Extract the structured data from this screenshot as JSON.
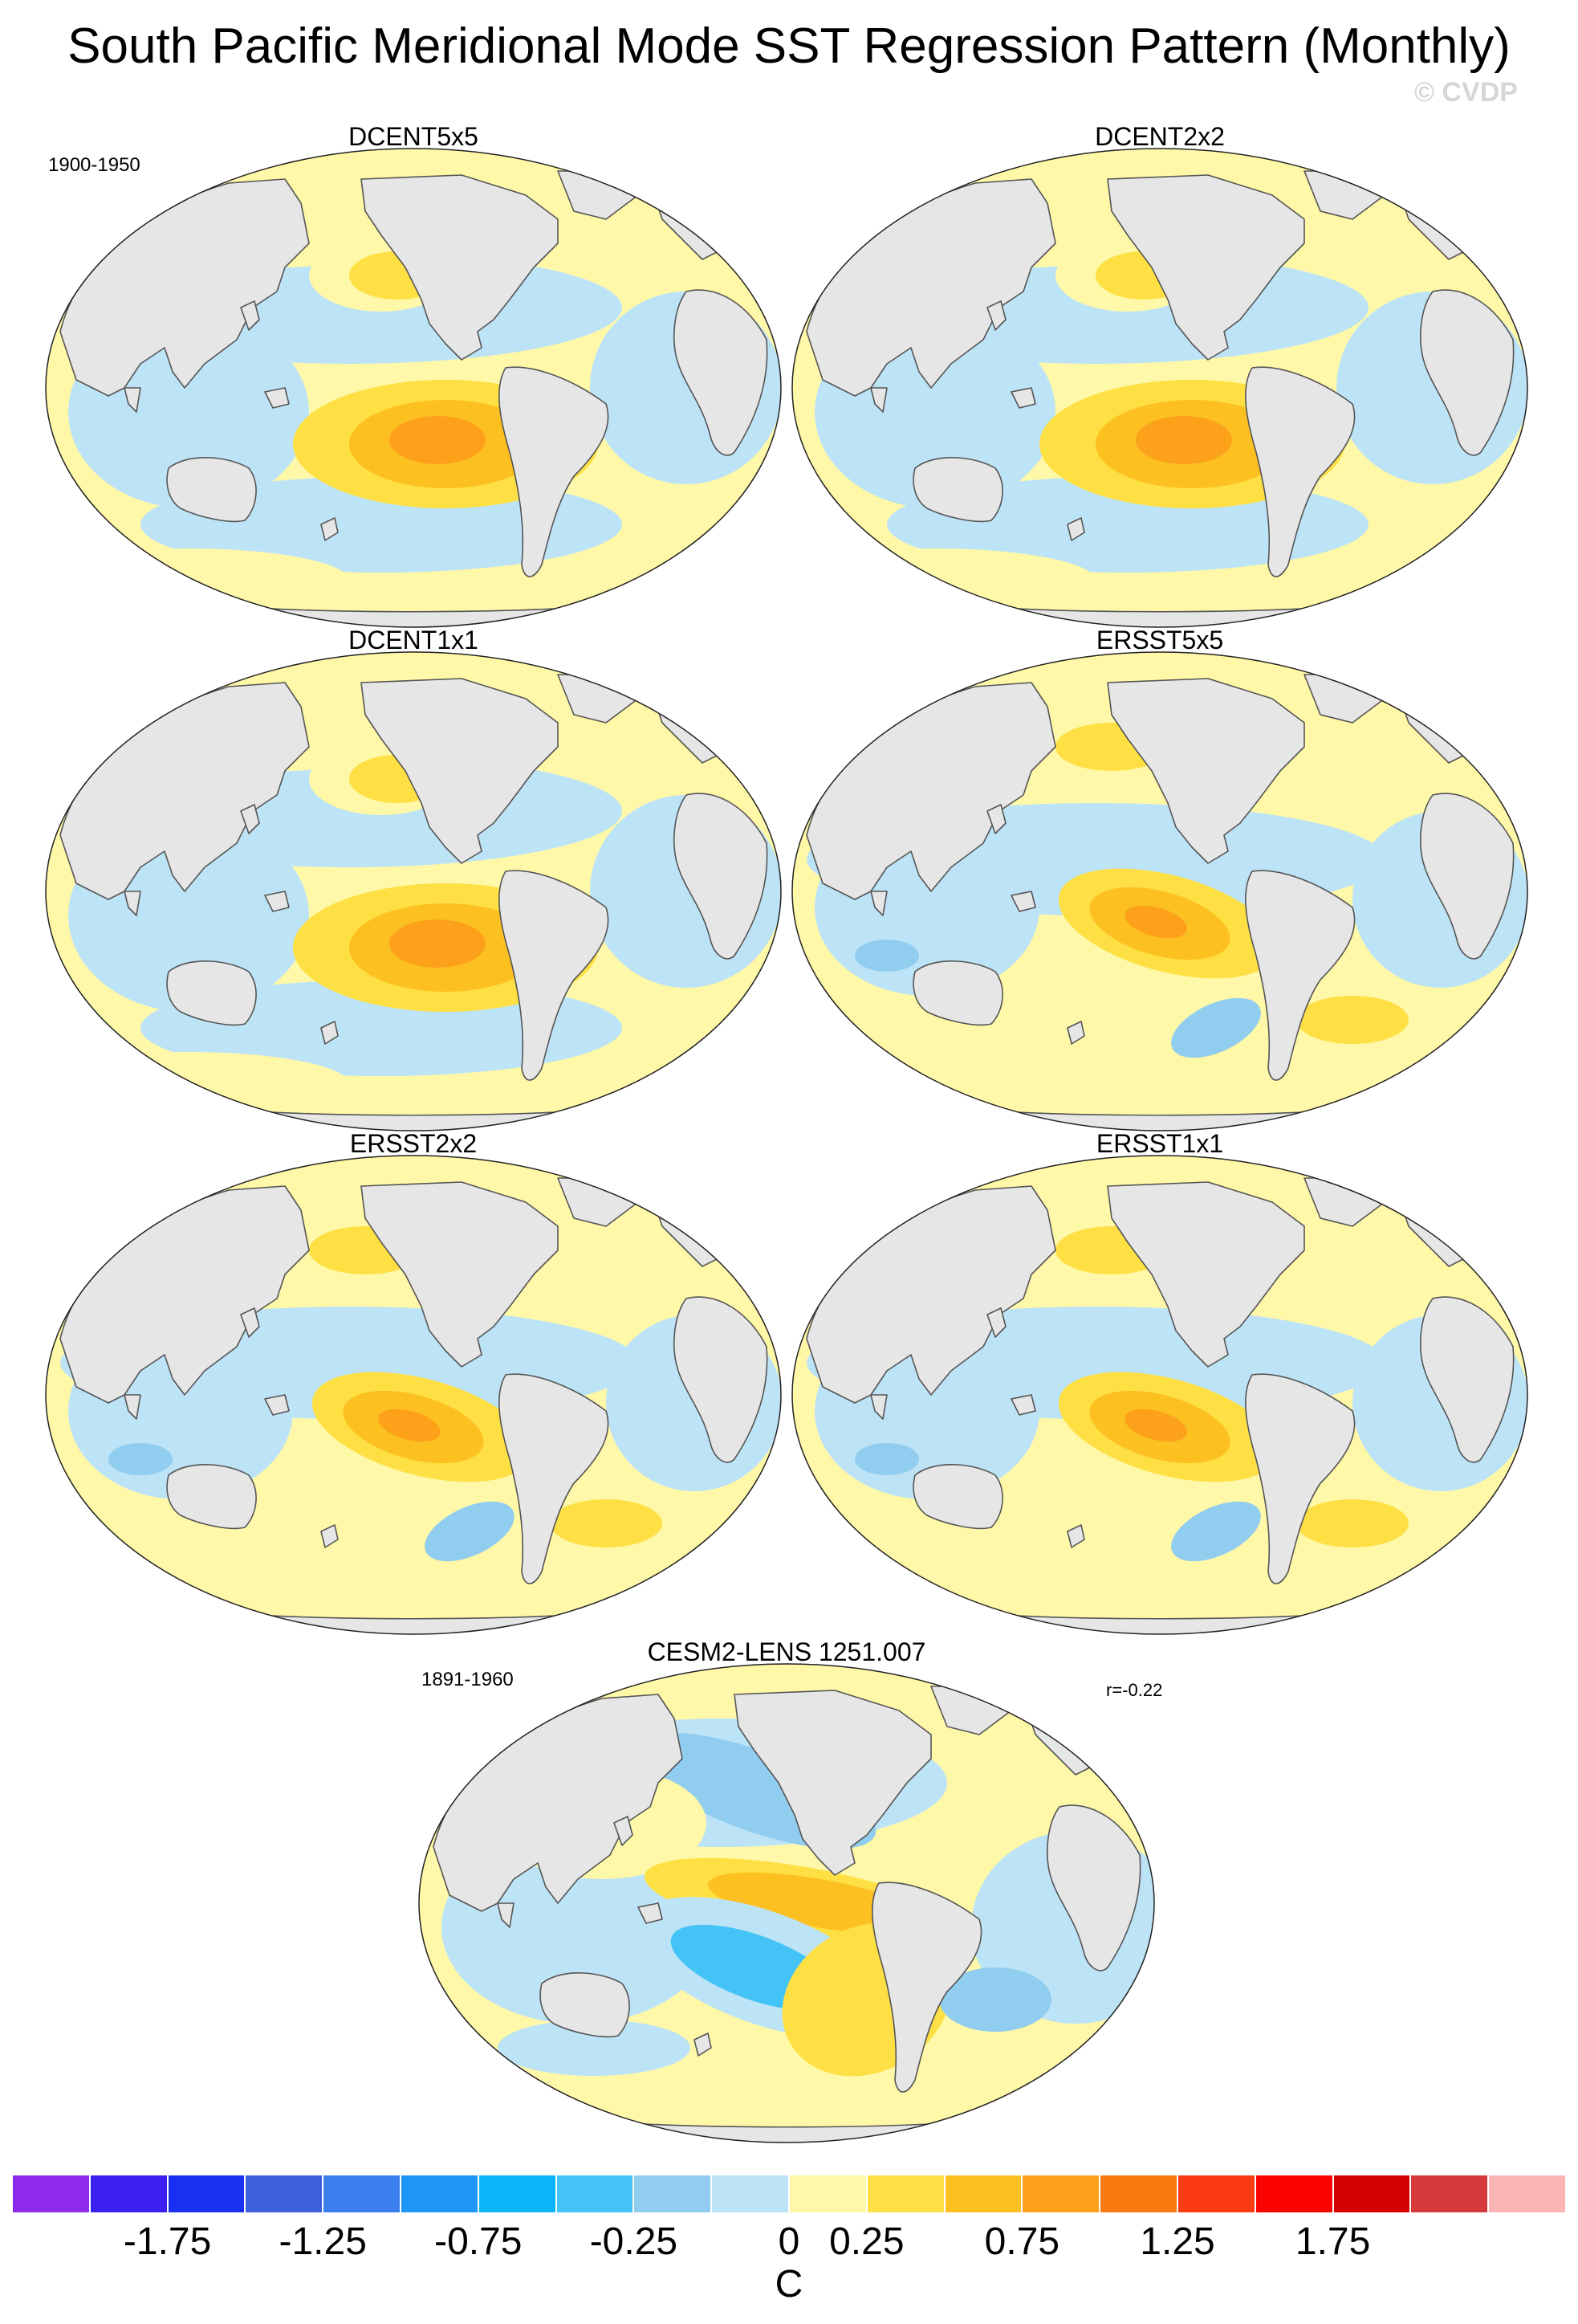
{
  "title": "South Pacific Meridional Mode SST Regression Pattern (Monthly)",
  "watermark": "© CVDP",
  "panels": [
    {
      "name": "DCENT5x5",
      "pattern": "dcent",
      "period": "1900-1950"
    },
    {
      "name": "DCENT2x2",
      "pattern": "dcent"
    },
    {
      "name": "DCENT1x1",
      "pattern": "dcent"
    },
    {
      "name": "ERSST5x5",
      "pattern": "ersst"
    },
    {
      "name": "ERSST2x2",
      "pattern": "ersst"
    },
    {
      "name": "ERSST1x1",
      "pattern": "ersst"
    },
    {
      "name": "CESM2-LENS 1251.007",
      "pattern": "cesm",
      "period": "1891-1960",
      "r": "r=-0.22"
    }
  ],
  "colorbar": {
    "unit": "C",
    "labels": [
      "-1.75",
      "-1.25",
      "-0.75",
      "-0.25",
      "0",
      "0.25",
      "0.75",
      "1.25",
      "1.75"
    ],
    "colors": [
      "#8e2aec",
      "#3a1ff0",
      "#1730f2",
      "#3d5fdc",
      "#3a7ef0",
      "#1e96f6",
      "#0ab4f7",
      "#44c4f6",
      "#90cdee",
      "#bde3f6",
      "#fff8a8",
      "#fee044",
      "#fdc021",
      "#fda01a",
      "#fb7911",
      "#fb3b12",
      "#fb0400",
      "#d40000",
      "#d63a3a",
      "#fbb5b5"
    ]
  }
}
